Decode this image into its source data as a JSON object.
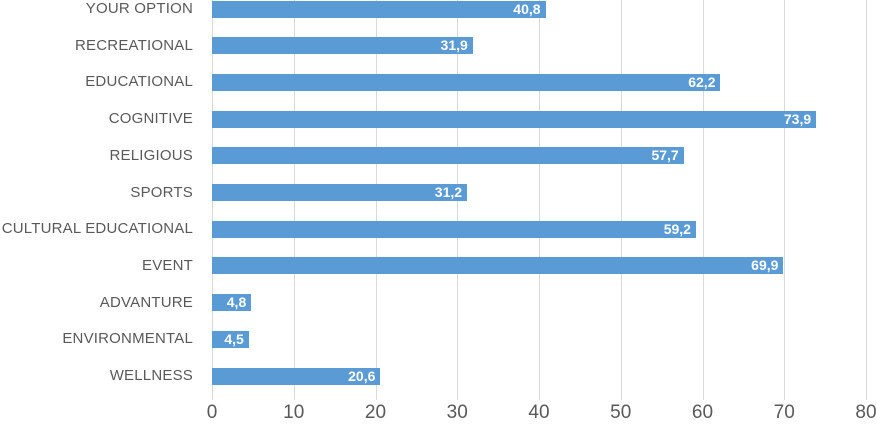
{
  "chart_data": {
    "type": "bar",
    "orientation": "horizontal",
    "title": "",
    "categories": [
      "YOUR OPTION",
      "RECREATIONAL",
      "EDUCATIONAL",
      "COGNITIVE",
      "RELIGIOUS",
      "SPORTS",
      "CULTURAL EDUCATIONAL",
      "EVENT",
      "ADVANTURE",
      "ENVIRONMENTAL",
      "WELLNESS"
    ],
    "values": [
      40.8,
      31.9,
      62.2,
      73.9,
      57.7,
      31.2,
      59.2,
      69.9,
      4.8,
      4.5,
      20.6
    ],
    "value_labels": [
      "40,8",
      "31,9",
      "62,2",
      "73,9",
      "57,7",
      "31,2",
      "59,2",
      "69,9",
      "4,8",
      "4,5",
      "20,6"
    ],
    "x_ticks": [
      0,
      10,
      20,
      30,
      40,
      50,
      60,
      70,
      80
    ],
    "xlim": [
      0,
      80
    ],
    "grid": true,
    "legend": false,
    "value_labels_position": "inside-end",
    "colors": {
      "bar": "#5B9BD5",
      "gridline": "#D9D9D9",
      "axis_text": "#595959",
      "category_text": "#595959",
      "value_label_text": "#FFFFFF",
      "background": "#FFFFFF"
    }
  }
}
